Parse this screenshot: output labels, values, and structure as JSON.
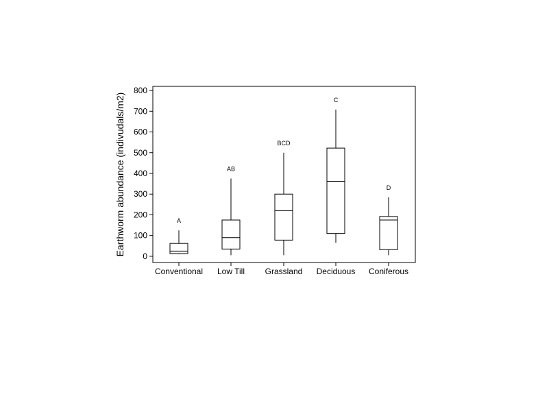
{
  "chart_data": {
    "type": "box",
    "title": "",
    "xlabel": "",
    "ylabel": "Earthworm abundance (indivudals/m2)",
    "ylim": [
      -30,
      820
    ],
    "yticks": [
      0,
      100,
      200,
      300,
      400,
      500,
      600,
      700,
      800
    ],
    "grid": false,
    "categories": [
      "Conventional",
      "Low Till",
      "Grassland",
      "Deciduous",
      "Coniferous"
    ],
    "boxes": [
      {
        "category": "Conventional",
        "min": 10,
        "q1": 13,
        "median": 25,
        "q3": 62,
        "max": 125,
        "group": "A"
      },
      {
        "category": "Low Till",
        "min": 5,
        "q1": 35,
        "median": 90,
        "q3": 175,
        "max": 375,
        "group": "AB"
      },
      {
        "category": "Grassland",
        "min": 5,
        "q1": 78,
        "median": 220,
        "q3": 300,
        "max": 500,
        "group": "BCD"
      },
      {
        "category": "Deciduous",
        "min": 65,
        "q1": 110,
        "median": 362,
        "q3": 522,
        "max": 708,
        "group": "C"
      },
      {
        "category": "Coniferous",
        "min": 5,
        "q1": 32,
        "median": 175,
        "q3": 192,
        "max": 285,
        "group": "D"
      }
    ]
  }
}
